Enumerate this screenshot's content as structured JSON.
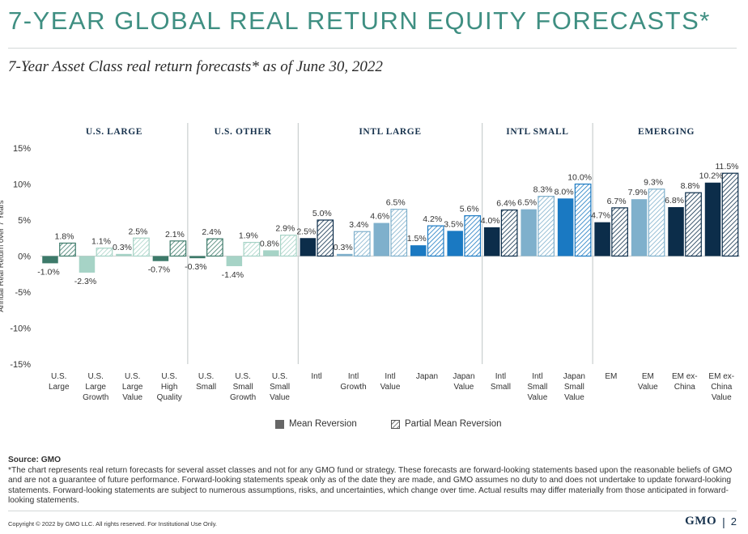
{
  "page": {
    "title": "7-YEAR GLOBAL REAL RETURN EQUITY FORECASTS*",
    "subtitle": "7-Year Asset Class real return forecasts* as of June 30, 2022",
    "source_label": "Source: GMO",
    "footnote": "*The chart represents real return forecasts for several asset classes and not for any GMO fund or strategy. These forecasts are forward-looking statements based upon the reasonable beliefs of GMO and are not a guarantee of future performance. Forward-looking statements speak only as of the date they are made, and GMO assumes no duty to and does not undertake to update forward-looking statements. Forward-looking statements are subject to numerous assumptions, risks, and uncertainties, which change over time. Actual results may differ materially from those anticipated in forward-looking statements.",
    "copyright": "Copyright © 2022 by GMO LLC. All rights reserved. For Institutional Use Only.",
    "logo": "GMO",
    "page_number": "2"
  },
  "legend": {
    "mean_reversion": "Mean Reversion",
    "partial_mean_reversion": "Partial Mean Reversion"
  },
  "colors": {
    "title": "#3f8f82",
    "us_dark": "#3d7a6a",
    "us_light": "#a6d3c6",
    "intl_dark": "#0c2d4a",
    "intl_mid": "#7fb0cc",
    "intl_bright": "#1a79c2",
    "legend_gray": "#666666"
  },
  "chart_data": {
    "type": "bar",
    "ylabel": "Annual Real Return over 7 Years",
    "ylim": [
      -15,
      15
    ],
    "yticks": [
      "15%",
      "10%",
      "5%",
      "0%",
      "-5%",
      "-10%",
      "-15%"
    ],
    "ytick_values": [
      15,
      10,
      5,
      0,
      -5,
      -10,
      -15
    ],
    "groups": [
      {
        "label": "U.S. LARGE",
        "count": 4
      },
      {
        "label": "U.S. OTHER",
        "count": 3
      },
      {
        "label": "INTL LARGE",
        "count": 5
      },
      {
        "label": "INTL SMALL",
        "count": 3
      },
      {
        "label": "EMERGING",
        "count": 4
      }
    ],
    "categories": [
      {
        "label": [
          "U.S.",
          "Large"
        ],
        "mean": -1.0,
        "partial": 1.8,
        "color": "us_dark"
      },
      {
        "label": [
          "U.S.",
          "Large",
          "Growth"
        ],
        "mean": -2.3,
        "partial": 1.1,
        "color": "us_light"
      },
      {
        "label": [
          "U.S.",
          "Large",
          "Value"
        ],
        "mean": 0.3,
        "partial": 2.5,
        "color": "us_light"
      },
      {
        "label": [
          "U.S.",
          "High",
          "Quality"
        ],
        "mean": -0.7,
        "partial": 2.1,
        "color": "us_dark"
      },
      {
        "label": [
          "U.S.",
          "Small"
        ],
        "mean": -0.3,
        "partial": 2.4,
        "color": "us_dark"
      },
      {
        "label": [
          "U.S.",
          "Small",
          "Growth"
        ],
        "mean": -1.4,
        "partial": 1.9,
        "color": "us_light"
      },
      {
        "label": [
          "U.S.",
          "Small",
          "Value"
        ],
        "mean": 0.8,
        "partial": 2.9,
        "color": "us_light"
      },
      {
        "label": [
          "Intl"
        ],
        "mean": 2.5,
        "partial": 5.0,
        "color": "intl_dark"
      },
      {
        "label": [
          "Intl",
          "Growth"
        ],
        "mean": 0.3,
        "partial": 3.4,
        "color": "intl_mid"
      },
      {
        "label": [
          "Intl",
          "Value"
        ],
        "mean": 4.6,
        "partial": 6.5,
        "color": "intl_mid"
      },
      {
        "label": [
          "Japan"
        ],
        "mean": 1.5,
        "partial": 4.2,
        "color": "intl_bright"
      },
      {
        "label": [
          "Japan",
          "Value"
        ],
        "mean": 3.5,
        "partial": 5.6,
        "color": "intl_bright"
      },
      {
        "label": [
          "Intl",
          "Small"
        ],
        "mean": 4.0,
        "partial": 6.4,
        "color": "intl_dark"
      },
      {
        "label": [
          "Intl",
          "Small",
          "Value"
        ],
        "mean": 6.5,
        "partial": 8.3,
        "color": "intl_mid"
      },
      {
        "label": [
          "Japan",
          "Small",
          "Value"
        ],
        "mean": 8.0,
        "partial": 10.0,
        "color": "intl_bright"
      },
      {
        "label": [
          "EM"
        ],
        "mean": 4.7,
        "partial": 6.7,
        "color": "intl_dark"
      },
      {
        "label": [
          "EM",
          "Value"
        ],
        "mean": 7.9,
        "partial": 9.3,
        "color": "intl_mid"
      },
      {
        "label": [
          "EM ex-",
          "China"
        ],
        "mean": 6.8,
        "partial": 8.8,
        "color": "intl_dark"
      },
      {
        "label": [
          "EM ex-",
          "China",
          "Value"
        ],
        "mean": 10.2,
        "partial": 11.5,
        "color": "intl_dark"
      }
    ],
    "series": [
      {
        "name": "Mean Reversion",
        "key": "mean"
      },
      {
        "name": "Partial Mean Reversion",
        "key": "partial"
      }
    ],
    "legend_position": "bottom-center",
    "grid": false
  }
}
